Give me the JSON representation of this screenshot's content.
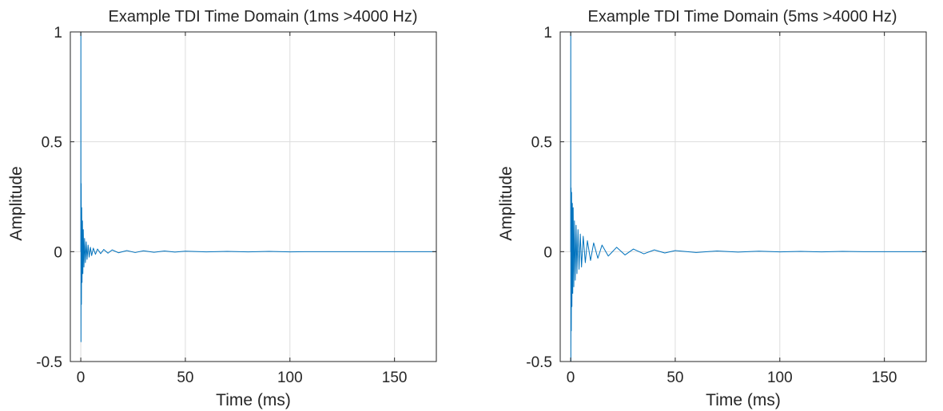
{
  "figure": {
    "colors": {
      "series": "#0072BD",
      "grid": "#dddddd",
      "axis": "#262626",
      "background": "#ffffff"
    }
  },
  "chart_data": [
    {
      "type": "line",
      "title": "Example TDI Time Domain (1ms >4000 Hz)",
      "xlabel": "Time (ms)",
      "ylabel": "Amplitude",
      "xlim": [
        -5,
        170
      ],
      "ylim": [
        -0.5,
        1
      ],
      "xticks": [
        0,
        50,
        100,
        150
      ],
      "yticks": [
        -0.5,
        0,
        0.5,
        1
      ],
      "xtick_labels": [
        "0",
        "50",
        "100",
        "150"
      ],
      "ytick_labels": [
        "-0.5",
        "0",
        "0.5",
        "1"
      ],
      "grid": true,
      "series": [
        {
          "color": "#0072BD",
          "x": [
            0,
            0.05,
            0.1,
            0.2,
            0.3,
            0.45,
            0.6,
            0.8,
            1.0,
            1.2,
            1.5,
            1.8,
            2.2,
            2.6,
            3.0,
            3.5,
            4.0,
            4.6,
            5.2,
            6.0,
            7.0,
            8.0,
            9.5,
            11,
            13,
            15,
            18,
            22,
            26,
            30,
            35,
            40,
            45,
            50,
            60,
            70,
            80,
            90,
            100,
            110,
            120,
            130,
            140,
            150,
            160,
            170
          ],
          "y": [
            0,
            1.0,
            -0.41,
            0.31,
            -0.24,
            0.2,
            -0.14,
            0.14,
            -0.1,
            0.1,
            -0.07,
            0.06,
            -0.05,
            0.045,
            -0.035,
            0.03,
            -0.025,
            0.02,
            -0.018,
            0.016,
            -0.012,
            0.012,
            -0.009,
            0.01,
            -0.007,
            0.008,
            -0.005,
            0.005,
            -0.004,
            0.004,
            -0.003,
            0.003,
            -0.002,
            0.002,
            -0.001,
            0.001,
            -0.001,
            0.001,
            -0.001,
            0.0,
            0.0,
            0.0,
            0.0,
            0.0,
            0.0,
            0.0
          ]
        }
      ]
    },
    {
      "type": "line",
      "title": "Example TDI Time Domain (5ms >4000 Hz)",
      "xlabel": "Time (ms)",
      "ylabel": "Amplitude",
      "xlim": [
        -5,
        170
      ],
      "ylim": [
        -0.5,
        1
      ],
      "xticks": [
        0,
        50,
        100,
        150
      ],
      "yticks": [
        -0.5,
        0,
        0.5,
        1
      ],
      "xtick_labels": [
        "0",
        "50",
        "100",
        "150"
      ],
      "ytick_labels": [
        "-0.5",
        "0",
        "0.5",
        "1"
      ],
      "grid": true,
      "series": [
        {
          "color": "#0072BD",
          "x": [
            0,
            0.05,
            0.1,
            0.2,
            0.3,
            0.45,
            0.6,
            0.8,
            1.0,
            1.2,
            1.5,
            1.8,
            2.2,
            2.6,
            3.0,
            3.5,
            4.0,
            4.6,
            5.2,
            6.0,
            7.0,
            8.0,
            9.5,
            11,
            13,
            15,
            18,
            22,
            26,
            30,
            35,
            40,
            45,
            50,
            60,
            70,
            80,
            90,
            100,
            110,
            120,
            130,
            140,
            150,
            160,
            170
          ],
          "y": [
            0,
            1.0,
            -0.5,
            0.29,
            -0.36,
            0.27,
            -0.25,
            0.22,
            -0.19,
            0.2,
            -0.16,
            0.14,
            -0.13,
            0.12,
            -0.1,
            0.1,
            -0.08,
            0.08,
            -0.07,
            0.07,
            -0.05,
            0.05,
            -0.04,
            0.04,
            -0.03,
            0.03,
            -0.02,
            0.02,
            -0.015,
            0.012,
            -0.01,
            0.008,
            -0.006,
            0.005,
            -0.004,
            0.003,
            -0.002,
            0.002,
            -0.001,
            0.001,
            -0.001,
            0.001,
            0.0,
            0.0,
            0.0,
            0.0
          ]
        }
      ]
    }
  ]
}
